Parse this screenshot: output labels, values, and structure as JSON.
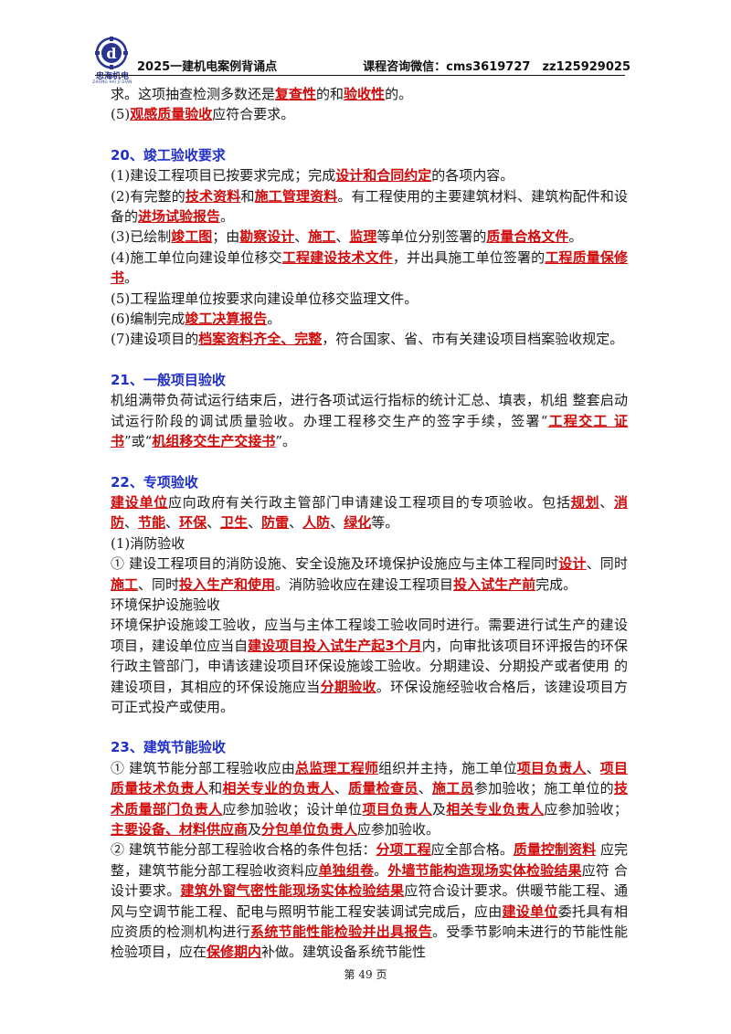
{
  "header": {
    "logo_text": "忠海机电",
    "logo_subtext": "ZHONG HAI JI DIAN",
    "title": "2025一建机电案例背诵点",
    "contact": "课程咨询微信：cms3619727　zz125929025"
  },
  "colors": {
    "accent_heading": "#2130c8",
    "highlight": "#d10a0a"
  },
  "sections": {
    "s19_tail": {
      "l1": [
        {
          "t": "求。这项抽查检测多数还是"
        },
        {
          "h": "复查性"
        },
        {
          "t": "的和"
        },
        {
          "h": "验收性"
        },
        {
          "t": "的。"
        }
      ],
      "l2": [
        {
          "t": "(5)"
        },
        {
          "h": "观感质量验收"
        },
        {
          "t": "应符合要求。"
        }
      ]
    },
    "s20": {
      "title": "20、竣工验收要求",
      "p1": [
        {
          "t": "(1)建设工程项目已按要求完成；完成"
        },
        {
          "h": "设计和合同约定"
        },
        {
          "t": "的各项内容。"
        }
      ],
      "p2": [
        {
          "t": "(2)有完整的"
        },
        {
          "h": "技术资料"
        },
        {
          "t": "和"
        },
        {
          "h": "施工管理资料"
        },
        {
          "t": "。有工程使用的主要建筑材料、建筑构配件和设备的"
        },
        {
          "h": "进场试验报告"
        },
        {
          "t": "。"
        }
      ],
      "p3": [
        {
          "t": "(3)已绘制"
        },
        {
          "h": "竣工图"
        },
        {
          "t": "；由"
        },
        {
          "h": "勘察设计"
        },
        {
          "t": "、"
        },
        {
          "h": "施工"
        },
        {
          "t": "、"
        },
        {
          "h": "监理"
        },
        {
          "t": "等单位分别签署的"
        },
        {
          "h": "质量合格文件"
        },
        {
          "t": "。"
        }
      ],
      "p4": [
        {
          "t": "(4)施工单位向建设单位移交"
        },
        {
          "h": "工程建设技术文件"
        },
        {
          "t": "，并出具施工单位签署的"
        },
        {
          "h": "工程质量保修书"
        },
        {
          "t": "。"
        }
      ],
      "p5": [
        {
          "t": "(5)工程监理单位按要求向建设单位移交监理文件。"
        }
      ],
      "p6": [
        {
          "t": "(6)编制完成"
        },
        {
          "h": "竣工决算报告"
        },
        {
          "t": "。"
        }
      ],
      "p7": [
        {
          "t": "(7)建设项目的"
        },
        {
          "h": "档案资料齐全、完整"
        },
        {
          "t": "，符合国家、省、市有关建设项目档案验收规定。"
        }
      ]
    },
    "s21": {
      "title": "21、一般项目验收",
      "p1": [
        {
          "t": "机组满带负荷试运行结束后，进行各项试运行指标的统计汇总、填表，机组 整套启动试运行阶段的调试质量验收。办理工程移交生产的签字手续，签署“"
        },
        {
          "h": "工程交工 证书"
        },
        {
          "t": "”或“"
        },
        {
          "h": "机组移交生产交接书"
        },
        {
          "t": "”。"
        }
      ]
    },
    "s22": {
      "title": "22、专项验收",
      "p1": [
        {
          "h": "建设单位"
        },
        {
          "t": "应向政府有关行政主管部门申请建设工程项目的专项验收。包括"
        },
        {
          "h": "规划"
        },
        {
          "t": "、"
        },
        {
          "h": "消防"
        },
        {
          "t": "、"
        },
        {
          "h": "节能"
        },
        {
          "t": "、"
        },
        {
          "h": "环保"
        },
        {
          "t": "、"
        },
        {
          "h": "卫生"
        },
        {
          "t": "、"
        },
        {
          "h": "防雷"
        },
        {
          "t": "、"
        },
        {
          "h": "人防"
        },
        {
          "t": "、"
        },
        {
          "h": "绿化"
        },
        {
          "t": "等。"
        }
      ],
      "p2": [
        {
          "t": "(1)消防验收"
        }
      ],
      "p3": [
        {
          "t": "① 建设工程项目的消防设施、安全设施及环境保护设施应与主体工程同时"
        },
        {
          "h": "设计"
        },
        {
          "t": "、同时"
        },
        {
          "h": "施工"
        },
        {
          "t": "、同时"
        },
        {
          "h": "投入生产和使用"
        },
        {
          "t": "。消防验收应在建设工程项目"
        },
        {
          "h": "投入试生产前"
        },
        {
          "t": "完成。"
        }
      ],
      "p4": [
        {
          "t": "环境保护设施验收"
        }
      ],
      "p5": [
        {
          "t": "环境保护设施竣工验收，应当与主体工程竣工验收同时进行。需要进行试生产的建设项目，建设单位应当自"
        },
        {
          "h": "建设项目投入试生产起3个月"
        },
        {
          "t": "内，向审批该项目环评报告的环保行政主管部门，申请该建设项目环保设施竣工验收。分期建设、分期投产或者使用 的建设项目，其相应的环保设施应当"
        },
        {
          "h": "分期验收"
        },
        {
          "t": "。环保设施经验收合格后，该建设项目方可正式投产或使用。"
        }
      ]
    },
    "s23": {
      "title": "23、建筑节能验收",
      "p1": [
        {
          "t": "① 建筑节能分部工程验收应由"
        },
        {
          "h": "总监理工程师"
        },
        {
          "t": "组织并主持，施工单位"
        },
        {
          "h": "项目负责人"
        },
        {
          "t": "、"
        },
        {
          "h": "项目质量技术负责人"
        },
        {
          "t": "和"
        },
        {
          "h": "相关专业的负责人"
        },
        {
          "t": "、"
        },
        {
          "h": "质量检查员"
        },
        {
          "t": "、"
        },
        {
          "h": "施工员"
        },
        {
          "t": "参加验收；施工单位的"
        },
        {
          "h": "技术质量部门负责人"
        },
        {
          "t": "应参加验收；设计单位"
        },
        {
          "h": "项目负责人"
        },
        {
          "t": "及"
        },
        {
          "h": "相关专业负责人"
        },
        {
          "t": "应参加验收；"
        },
        {
          "h": "主要设备、材料供应商"
        },
        {
          "t": "及"
        },
        {
          "h": "分包单位负责人"
        },
        {
          "t": "应参加验收。"
        }
      ],
      "p2": [
        {
          "t": "② 建筑节能分部工程验收合格的条件包括："
        },
        {
          "h": "分项工程"
        },
        {
          "t": "应全部合格。"
        },
        {
          "h": "质量控制资料"
        },
        {
          "t": " 应完整，建筑节能分部工程验收资料应"
        },
        {
          "h": "单独组卷"
        },
        {
          "t": "。"
        },
        {
          "h": "外墙节能构造现场实体检验结果"
        },
        {
          "t": "应符 合设计要求。"
        },
        {
          "h": "建筑外窗气密性能现场实体检验结果"
        },
        {
          "t": "应符合设计要求。供暖节能工程、通风与空调节能工程、配电与照明节能工程安装调试完成后，应由"
        },
        {
          "h": "建设单位"
        },
        {
          "t": "委托具有相应资质的检测机构进行"
        },
        {
          "h": "系统节能性能检验并出具报告"
        },
        {
          "t": "。受季节影响未进行的节能性能检验项目，应在"
        },
        {
          "h": "保修期内"
        },
        {
          "t": "补做。建筑设备系统节能性"
        }
      ]
    }
  },
  "footer": {
    "page_label": "第 49 页"
  }
}
